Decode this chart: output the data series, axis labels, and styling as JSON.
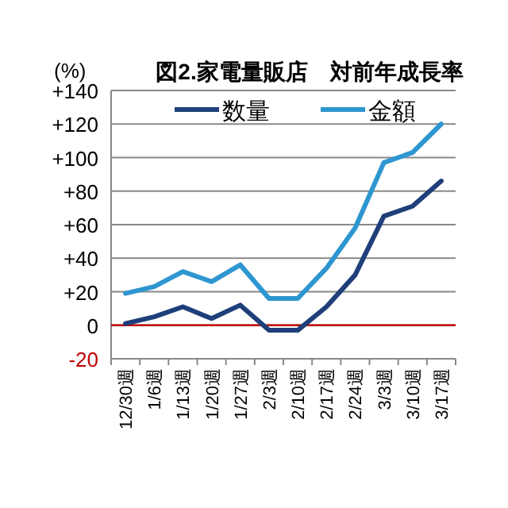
{
  "chart_data": {
    "type": "line",
    "title": "図2.家電量販店　対前年成長率",
    "ylabel": "(%)",
    "categories": [
      "12/30週",
      "1/6週",
      "1/13週",
      "1/20週",
      "1/27週",
      "2/3週",
      "2/10週",
      "2/17週",
      "2/24週",
      "3/3週",
      "3/10週",
      "3/17週"
    ],
    "series": [
      {
        "name": "数量",
        "color": "#1f3f7a",
        "values": [
          1,
          5,
          11,
          4,
          12,
          -3,
          -3,
          11,
          30,
          65,
          71,
          86
        ]
      },
      {
        "name": "金額",
        "color": "#2e96d0",
        "values": [
          19,
          23,
          32,
          26,
          36,
          16,
          16,
          34,
          58,
          97,
          103,
          120
        ]
      }
    ],
    "ylim": [
      -20,
      140
    ],
    "yticks": [
      {
        "value": -20,
        "label": "-20"
      },
      {
        "value": 0,
        "label": "0"
      },
      {
        "value": 20,
        "label": "+20"
      },
      {
        "value": 40,
        "label": "+40"
      },
      {
        "value": 60,
        "label": "+60"
      },
      {
        "value": 80,
        "label": "+80"
      },
      {
        "value": 100,
        "label": "+100"
      },
      {
        "value": 120,
        "label": "+120"
      },
      {
        "value": 140,
        "label": "+140"
      }
    ],
    "ref_lines": [
      {
        "axis": "y",
        "value": 0,
        "color": "#c00000"
      }
    ],
    "grid": "y",
    "legend": "top",
    "marker": "none",
    "line_style": "solid"
  }
}
